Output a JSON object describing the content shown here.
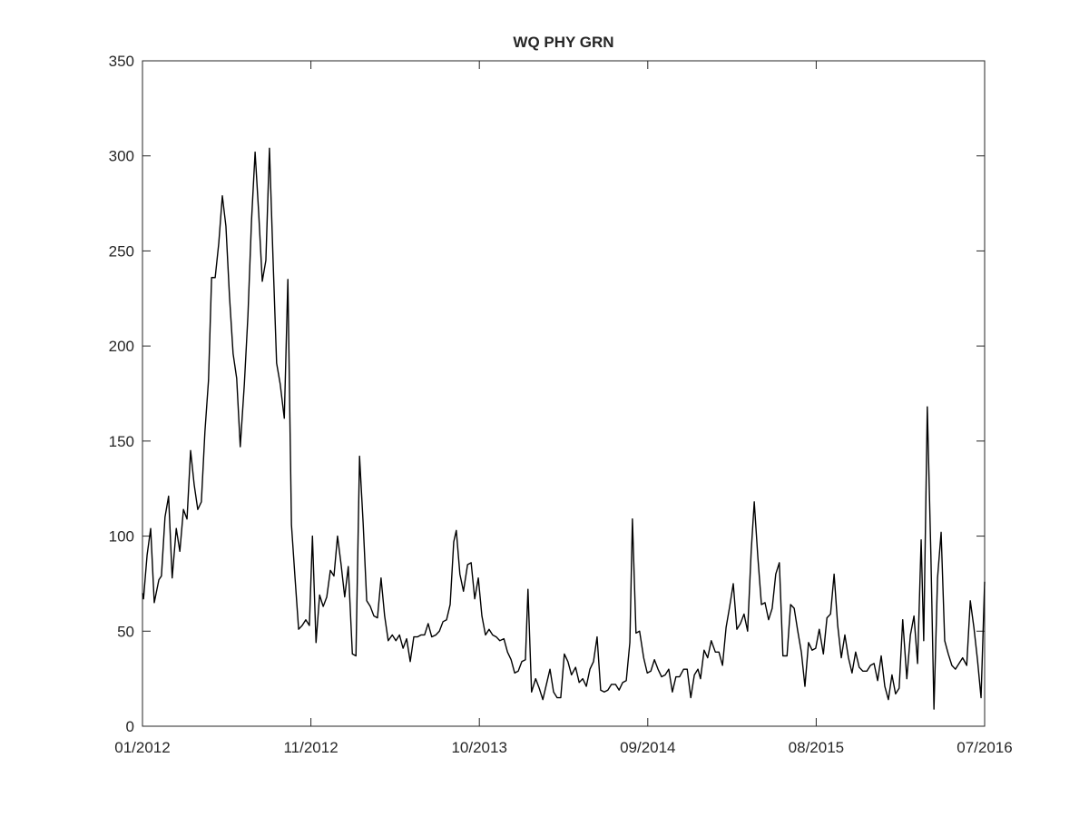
{
  "chart_data": {
    "type": "line",
    "title": "WQ PHY GRN",
    "color": "#000000",
    "x": [
      734869,
      734871,
      734878,
      734885,
      734892,
      734901,
      734906,
      734913,
      734920,
      734927,
      734935,
      734942,
      734949,
      734956,
      734963,
      734970,
      734977,
      734984,
      734991,
      734998,
      735004,
      735011,
      735018,
      735025,
      735032,
      735039,
      735046,
      735053,
      735060,
      735068,
      735075,
      735082,
      735089,
      735096,
      735103,
      735110,
      735117,
      735124,
      735131,
      735138,
      735146,
      735153,
      735160,
      735167,
      735174,
      735181,
      735188,
      735195,
      735201,
      735208,
      735215,
      735222,
      735229,
      735236,
      735243,
      735250,
      735257,
      735264,
      735271,
      735279,
      735286,
      735293,
      735300,
      735307,
      735314,
      735321,
      735328,
      735335,
      735342,
      735349,
      735357,
      735364,
      735371,
      735378,
      735385,
      735392,
      735399,
      735406,
      735413,
      735420,
      735427,
      735434,
      735442,
      735449,
      735456,
      735463,
      735470,
      735477,
      735482,
      735489,
      735496,
      735504,
      735511,
      735518,
      735525,
      735532,
      735539,
      735546,
      735553,
      735560,
      735567,
      735575,
      735582,
      735589,
      735596,
      735603,
      735610,
      735617,
      735622,
      735629,
      735637,
      735644,
      735651,
      735658,
      735665,
      735672,
      735679,
      735686,
      735693,
      735700,
      735707,
      735715,
      735722,
      735729,
      735736,
      735743,
      735750,
      735757,
      735764,
      735771,
      735778,
      735785,
      735793,
      735800,
      735807,
      735814,
      735821,
      735826,
      735833,
      735840,
      735848,
      735855,
      735862,
      735869,
      735876,
      735883,
      735890,
      735897,
      735904,
      735911,
      735918,
      735926,
      735933,
      735940,
      735947,
      735954,
      735959,
      735966,
      735973,
      735980,
      735988,
      735995,
      736002,
      736009,
      736016,
      736023,
      736030,
      736037,
      736044,
      736051,
      736058,
      736064,
      736071,
      736078,
      736085,
      736092,
      736099,
      736106,
      736113,
      736120,
      736128,
      736135,
      736142,
      736149,
      736156,
      736163,
      736170,
      736177,
      736184,
      736191,
      736199,
      736206,
      736213,
      736220,
      736227,
      736234,
      736241,
      736248,
      736255,
      736262,
      736269,
      736276,
      736284,
      736291,
      736298,
      736305,
      736312,
      736319,
      736326,
      736333,
      736340,
      736347,
      736354,
      736362,
      736369,
      736376,
      736383,
      736390,
      736395,
      736402,
      736409,
      736415,
      736422,
      736429,
      736436,
      736443,
      736450,
      736457,
      736464,
      736471,
      736479,
      736486,
      736493,
      736500,
      736507,
      736514
    ],
    "values": [
      70,
      67,
      90,
      104,
      65,
      77,
      79,
      110,
      121,
      78,
      104,
      92,
      114,
      109,
      145,
      127,
      114,
      118,
      155,
      182,
      236,
      236,
      254,
      279,
      263,
      226,
      196,
      183,
      147,
      180,
      216,
      266,
      302,
      270,
      234,
      245,
      304,
      246,
      191,
      180,
      162,
      235,
      106,
      78,
      51,
      53,
      56,
      53,
      100,
      44,
      69,
      63,
      68,
      82,
      79,
      100,
      85,
      68,
      84,
      38,
      37,
      142,
      107,
      66,
      63,
      58,
      57,
      78,
      58,
      45,
      48,
      45,
      48,
      41,
      46,
      34,
      47,
      47,
      48,
      48,
      54,
      47,
      48,
      50,
      55,
      56,
      64,
      97,
      103,
      80,
      71,
      85,
      86,
      67,
      78,
      58,
      48,
      51,
      48,
      47,
      45,
      46,
      39,
      35,
      28,
      29,
      34,
      35,
      72,
      18,
      25,
      20,
      14,
      22,
      30,
      18,
      15,
      15,
      38,
      34,
      27,
      31,
      23,
      25,
      21,
      30,
      34,
      47,
      19,
      18,
      19,
      22,
      22,
      19,
      23,
      24,
      44,
      109,
      49,
      50,
      36,
      28,
      29,
      35,
      30,
      26,
      27,
      30,
      18,
      26,
      26,
      30,
      30,
      15,
      27,
      30,
      25,
      40,
      36,
      45,
      39,
      39,
      32,
      52,
      63,
      75,
      51,
      54,
      59,
      50,
      92,
      118,
      89,
      64,
      65,
      56,
      62,
      80,
      86,
      37,
      37,
      64,
      62,
      50,
      39,
      21,
      44,
      40,
      41,
      51,
      38,
      57,
      59,
      80,
      53,
      36,
      48,
      36,
      28,
      39,
      31,
      29,
      29,
      32,
      33,
      24,
      37,
      21,
      14,
      27,
      17,
      20,
      56,
      25,
      48,
      58,
      33,
      98,
      45,
      168,
      90,
      9,
      78,
      102,
      45,
      38,
      32,
      30,
      33,
      36,
      32,
      66,
      52,
      35,
      15,
      76
    ],
    "xlim": [
      734869,
      736514
    ],
    "xticks": [
      {
        "value": 734869,
        "label": "01/2012"
      },
      {
        "value": 735198,
        "label": "11/2012"
      },
      {
        "value": 735527,
        "label": "10/2013"
      },
      {
        "value": 735856,
        "label": "09/2014"
      },
      {
        "value": 736185,
        "label": "08/2015"
      },
      {
        "value": 736514,
        "label": "07/2016"
      }
    ],
    "ylim": [
      0,
      350
    ],
    "yticks": [
      0,
      50,
      100,
      150,
      200,
      250,
      300,
      350
    ]
  }
}
